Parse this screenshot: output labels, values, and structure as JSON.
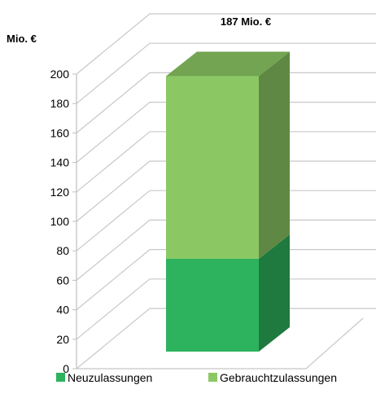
{
  "chart_data": {
    "type": "bar",
    "stacked": true,
    "three_d": true,
    "categories": [
      ""
    ],
    "series": [
      {
        "name": "Neuzulassungen",
        "values": [
          63
        ],
        "color": "#2db35d"
      },
      {
        "name": "Gebrauchtzulassungen",
        "values": [
          124
        ],
        "color": "#8bc864"
      }
    ],
    "y_unit_label": "Mio. €",
    "total_label": "187 Mio. €",
    "ylim": [
      0,
      200
    ],
    "y_ticks": [
      0,
      20,
      40,
      60,
      80,
      100,
      120,
      140,
      160,
      180,
      200
    ],
    "grid": true,
    "legend_position": "bottom"
  }
}
